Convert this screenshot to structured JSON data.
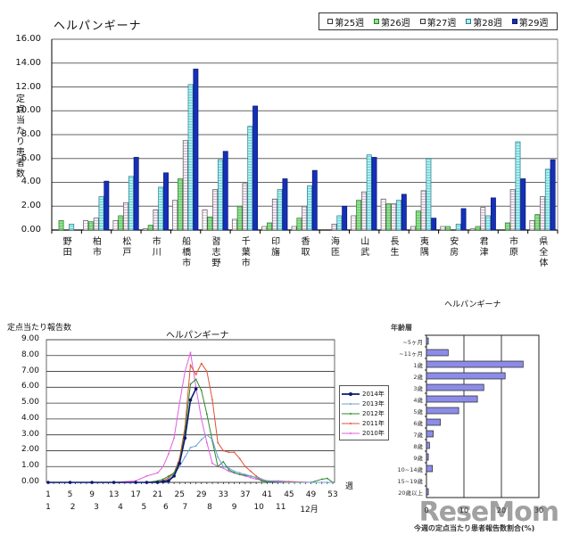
{
  "top_chart": {
    "title": "ヘルパンギーナ",
    "ylabel": "定点当たり患者数",
    "yticks": [
      "16.00",
      "14.00",
      "12.00",
      "10.00",
      "8.00",
      "6.00",
      "4.00",
      "2.00",
      "0.00"
    ],
    "legend": [
      "第25週",
      "第26週",
      "第27週",
      "第28週",
      "第29週"
    ],
    "categories": [
      "野田",
      "柏市",
      "松戸",
      "市川",
      "船橋市",
      "習志野",
      "千葉市",
      "印旛",
      "香取",
      "海匝",
      "山武",
      "長生",
      "夷隅",
      "安房",
      "君津",
      "市原",
      "県全体"
    ]
  },
  "line_chart": {
    "title": "ヘルパンギーナ",
    "ylabel": "定点当たり報告数",
    "yticks": [
      "9.00",
      "8.00",
      "7.00",
      "6.00",
      "5.00",
      "4.00",
      "3.00",
      "2.00",
      "1.00",
      "0.00"
    ],
    "week_ticks": [
      "1",
      "5",
      "9",
      "13",
      "17",
      "21",
      "25",
      "29",
      "33",
      "37",
      "41",
      "45",
      "49",
      "53"
    ],
    "week_unit": "週",
    "month_ticks": [
      "1",
      "2",
      "3",
      "4",
      "5",
      "6",
      "7",
      "8",
      "9",
      "10",
      "11",
      "12月"
    ],
    "legend": [
      "2014年",
      "2013年",
      "2012年",
      "2011年",
      "2010年"
    ]
  },
  "age_chart": {
    "title": "ヘルパンギーナ",
    "ylabel": "年齢層",
    "categories": [
      "~5ヶ月",
      "~11ヶ月",
      "1歳",
      "2歳",
      "3歳",
      "4歳",
      "5歳",
      "6歳",
      "7歳",
      "8歳",
      "9歳",
      "10~14歳",
      "15~19歳",
      "20歳以上"
    ],
    "xticks": [
      "0",
      "10",
      "20",
      "30"
    ],
    "xlabel": "今週の定点当たり患者報告数割合(%)"
  },
  "watermark": "ReseMom",
  "chart_data": [
    {
      "type": "bar",
      "title": "ヘルパンギーナ",
      "xlabel": "",
      "ylabel": "定点当たり患者数",
      "ylim": [
        0,
        16
      ],
      "grid": true,
      "legend_position": "top-right",
      "categories": [
        "野田",
        "柏市",
        "松戸",
        "市川",
        "船橋市",
        "習志野",
        "千葉市",
        "印旛",
        "香取",
        "海匝",
        "山武",
        "長生",
        "夷隅",
        "安房",
        "君津",
        "市原",
        "県全体"
      ],
      "series": [
        {
          "name": "第25週",
          "color": "#ffffff",
          "values": [
            0.0,
            0.8,
            0.8,
            0.1,
            2.5,
            1.7,
            0.9,
            0.3,
            0.3,
            0.0,
            1.2,
            2.6,
            0.3,
            0.3,
            0.1,
            0.0,
            0.8
          ]
        },
        {
          "name": "第26週",
          "color": "#90e090",
          "values": [
            0.8,
            0.7,
            1.2,
            0.4,
            4.3,
            1.1,
            2.0,
            0.6,
            1.0,
            0.0,
            2.5,
            2.2,
            1.6,
            0.3,
            0.3,
            0.6,
            1.3
          ]
        },
        {
          "name": "第27週",
          "color": "#f0e4f0",
          "values": [
            0.0,
            1.0,
            2.3,
            1.7,
            7.5,
            3.4,
            3.9,
            2.6,
            2.0,
            0.5,
            3.2,
            2.2,
            3.3,
            0.0,
            1.9,
            3.4,
            2.8
          ]
        },
        {
          "name": "第28週",
          "color": "#a8f0f0",
          "values": [
            0.5,
            2.8,
            4.5,
            3.6,
            12.2,
            5.9,
            8.7,
            3.4,
            3.7,
            1.2,
            6.3,
            2.5,
            6.0,
            0.5,
            1.2,
            7.4,
            5.1
          ]
        },
        {
          "name": "第29週",
          "color": "#1530b8",
          "values": [
            0.0,
            4.1,
            6.1,
            4.8,
            13.5,
            6.6,
            10.4,
            4.3,
            5.0,
            2.0,
            6.1,
            3.0,
            1.0,
            1.8,
            2.7,
            4.3,
            5.9
          ]
        }
      ]
    },
    {
      "type": "line",
      "title": "ヘルパンギーナ",
      "xlabel": "週",
      "ylabel": "定点当たり報告数",
      "ylim": [
        0,
        9
      ],
      "xlim": [
        1,
        53
      ],
      "grid": true,
      "legend_position": "right",
      "x": [
        1,
        5,
        9,
        13,
        17,
        19,
        21,
        22,
        23,
        24,
        25,
        26,
        27,
        28,
        29,
        30,
        31,
        32,
        33,
        34,
        35,
        36,
        37,
        38,
        39,
        40,
        41,
        43,
        45,
        49,
        51,
        52,
        53
      ],
      "series": [
        {
          "name": "2014年",
          "color": "#0a1a6e",
          "values": [
            0,
            0,
            0,
            0,
            0,
            0,
            0,
            0.05,
            0.1,
            0.4,
            1.2,
            2.8,
            5.2,
            5.9,
            null,
            null,
            null,
            null,
            null,
            null,
            null,
            null,
            null,
            null,
            null,
            null,
            null,
            null,
            null,
            null,
            null,
            null,
            null
          ]
        },
        {
          "name": "2013年",
          "color": "#6aa0d8",
          "values": [
            0,
            0,
            0,
            0,
            0,
            0,
            0,
            0.05,
            0.2,
            0.5,
            1.0,
            1.6,
            2.2,
            2.3,
            2.7,
            3.0,
            2.7,
            1.6,
            1.0,
            0.9,
            0.7,
            0.6,
            0.5,
            0.4,
            0.3,
            0.2,
            0.1,
            0.05,
            0,
            0,
            0,
            0,
            0
          ]
        },
        {
          "name": "2012年",
          "color": "#2a8a2a",
          "values": [
            0,
            0,
            0,
            0,
            0,
            0,
            0.1,
            0.2,
            0.4,
            0.6,
            1.3,
            3.2,
            6.2,
            6.5,
            5.8,
            4.3,
            2.6,
            1.0,
            1.3,
            0.8,
            0.6,
            0.5,
            0.45,
            0.4,
            0.3,
            0.1,
            0.05,
            0.05,
            0,
            0,
            0.2,
            0.25,
            0
          ]
        },
        {
          "name": "2011年",
          "color": "#e05030",
          "values": [
            0,
            0,
            0,
            0,
            0,
            0,
            0.05,
            0.1,
            0.3,
            0.6,
            1.5,
            3.5,
            7.4,
            6.8,
            7.5,
            7.0,
            5.2,
            2.5,
            2.0,
            1.9,
            1.9,
            1.5,
            1.0,
            0.7,
            0.4,
            0.2,
            0.1,
            0.05,
            0.05,
            0,
            0,
            0,
            0
          ]
        },
        {
          "name": "2010年",
          "color": "#e060e0",
          "values": [
            0,
            0,
            0,
            0,
            0.1,
            0.4,
            0.6,
            1.0,
            1.8,
            2.8,
            5.0,
            7.0,
            8.2,
            6.0,
            4.0,
            2.5,
            1.2,
            1.0,
            0.9,
            0.7,
            0.6,
            0.5,
            0.4,
            0.3,
            0.2,
            0.15,
            0.1,
            0.1,
            0.05,
            0,
            0,
            0,
            0
          ]
        }
      ]
    },
    {
      "type": "bar",
      "orientation": "horizontal",
      "title": "ヘルパンギーナ",
      "xlabel": "今週の定点当たり患者報告数割合(%)",
      "ylabel": "年齢層",
      "xlim": [
        0,
        30
      ],
      "grid": true,
      "categories": [
        "~5ヶ月",
        "~11ヶ月",
        "1歳",
        "2歳",
        "3歳",
        "4歳",
        "5歳",
        "6歳",
        "7歳",
        "8歳",
        "9歳",
        "10~14歳",
        "15~19歳",
        "20歳以上"
      ],
      "values": [
        0.5,
        5.8,
        25.8,
        21.0,
        15.3,
        13.6,
        8.6,
        3.7,
        1.8,
        0.8,
        0.5,
        1.6,
        0.0,
        0.5
      ],
      "color": "#8c8ce8"
    }
  ]
}
